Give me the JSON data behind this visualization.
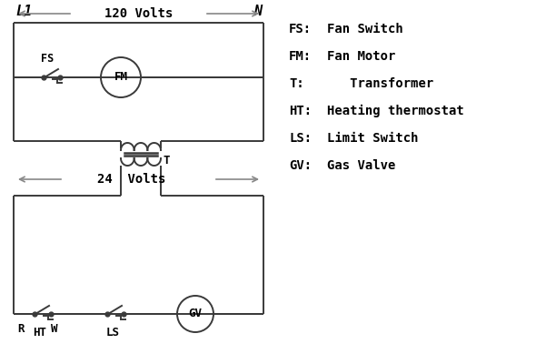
{
  "bg_color": "#ffffff",
  "line_color": "#3a3a3a",
  "arrow_color": "#888888",
  "text_color": "#000000",
  "legend": [
    [
      "FS:",
      "Fan Switch"
    ],
    [
      "FM:",
      "Fan Motor"
    ],
    [
      "T:",
      "   Transformer"
    ],
    [
      "HT:",
      "Heating thermostat"
    ],
    [
      "LS:",
      "Limit Switch"
    ],
    [
      "GV:",
      "Gas Valve"
    ]
  ],
  "label_120": "120 Volts",
  "label_24": "24  Volts",
  "L1": "L1",
  "N": "N"
}
